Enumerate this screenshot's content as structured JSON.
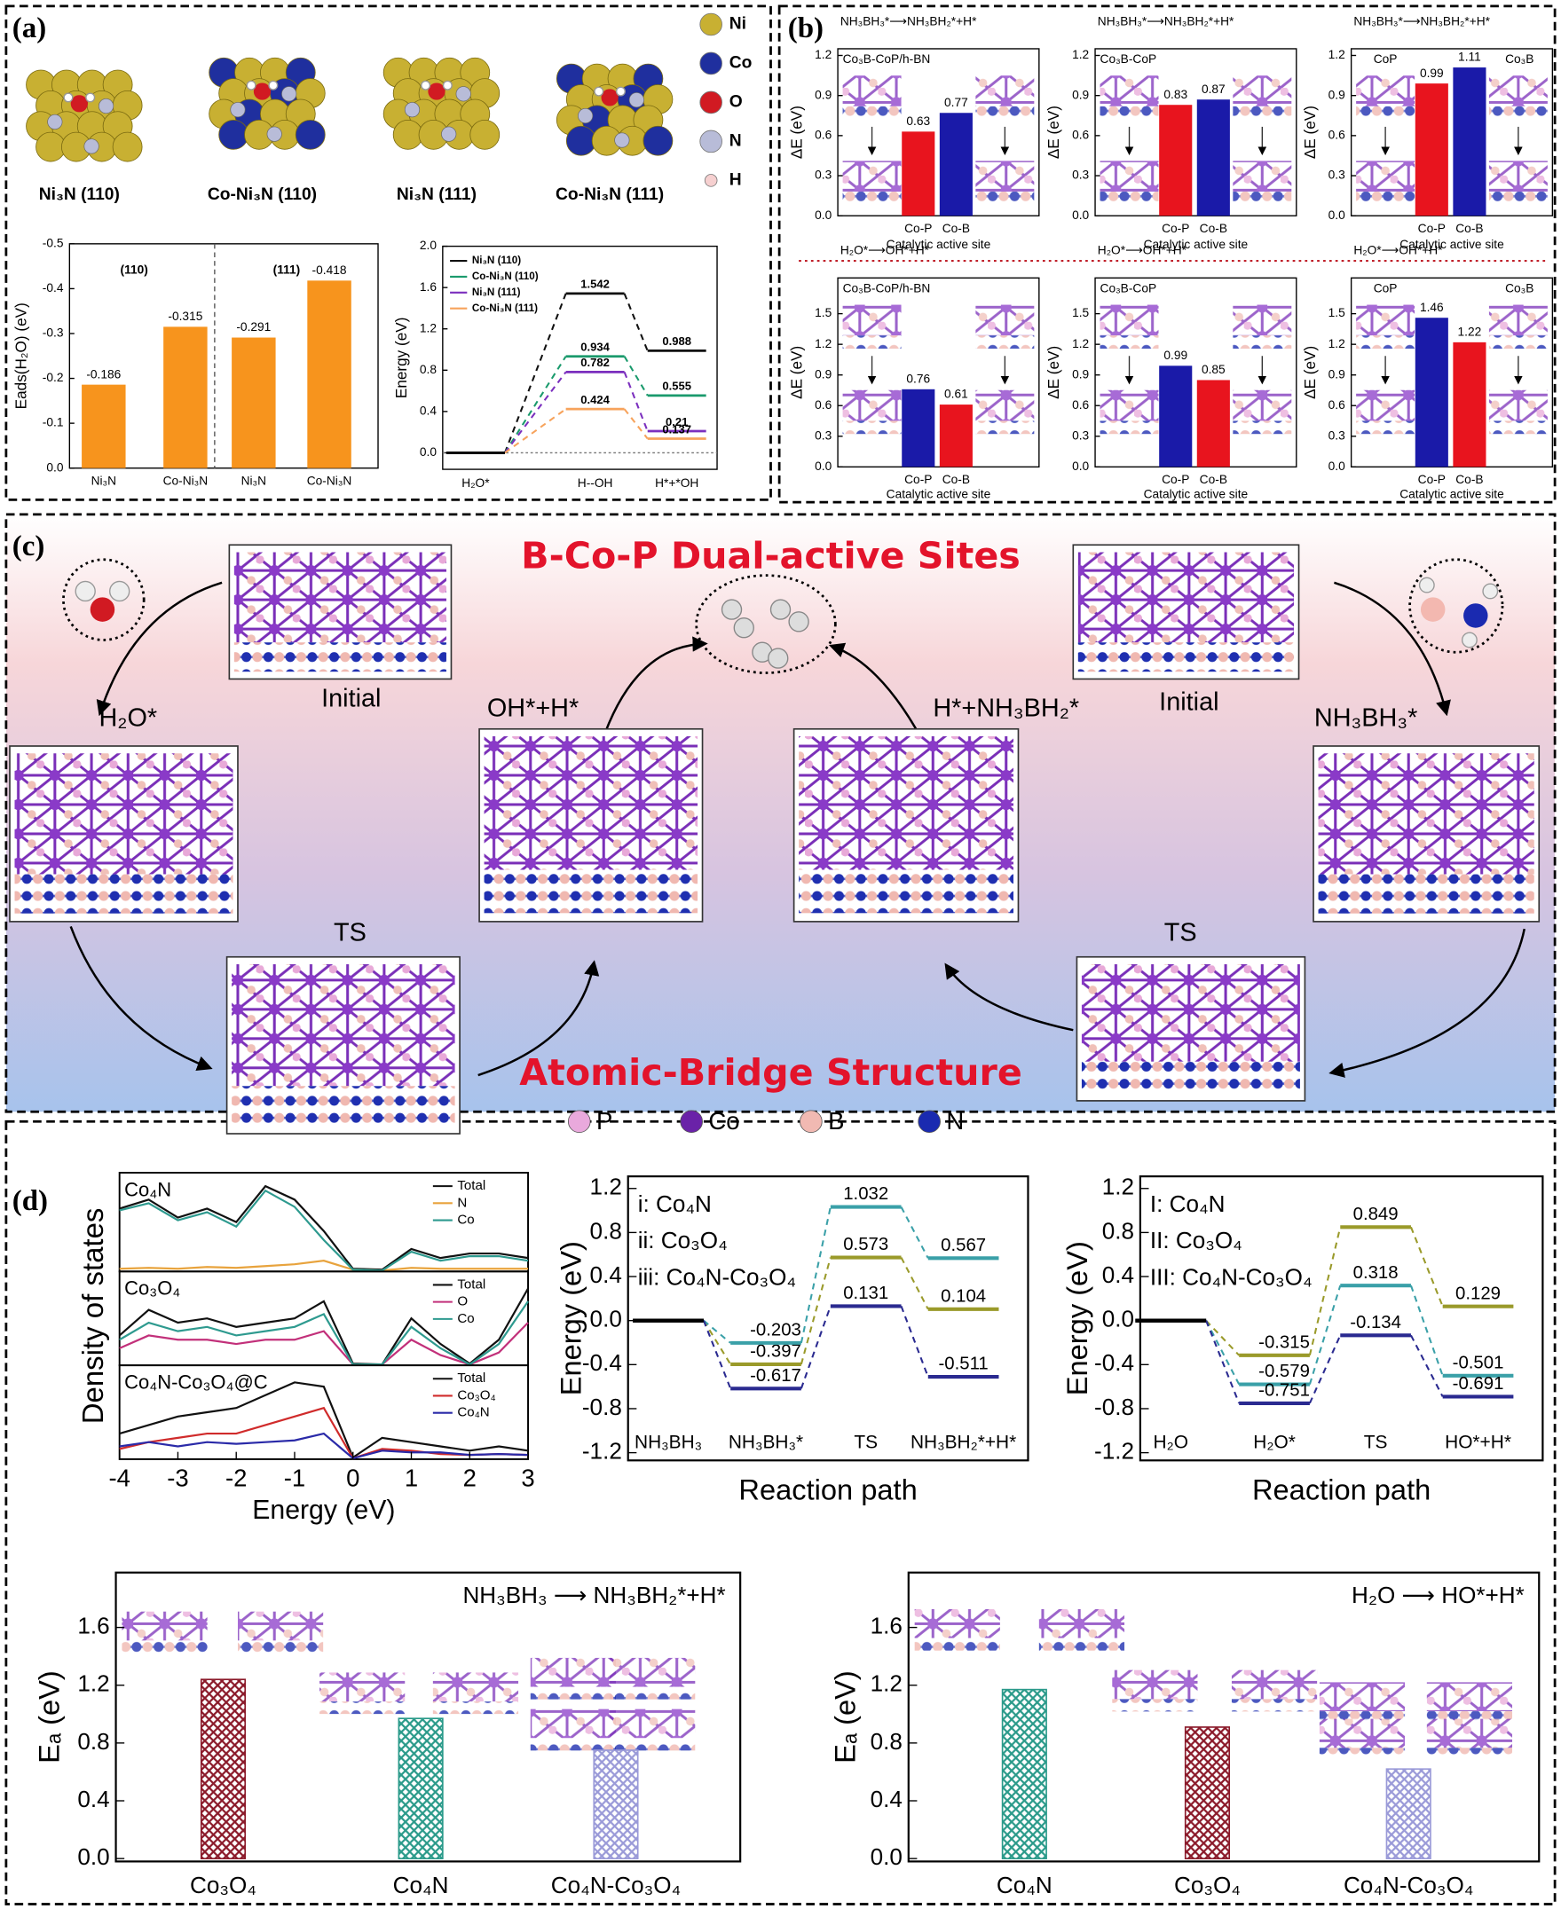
{
  "figure": {
    "panel_labels": [
      "(a)",
      "(b)",
      "(c)",
      "(d)"
    ],
    "structures": [
      "Ni₃N (110)",
      "Co-Ni₃N (110)",
      "Ni₃N (111)",
      "Co-Ni₃N (111)"
    ],
    "atoms_a": [
      "Ni",
      "Co",
      "O",
      "N",
      "H"
    ],
    "scheme": {
      "title": "B-Co-P Dual-active Sites",
      "subtitle": "Atomic-Bridge Structure",
      "states": [
        "Initial",
        "Initial",
        "H₂O*",
        "OH*+H*",
        "H*+NH₃BH₂*",
        "NH₃BH₃*",
        "TS",
        "TS"
      ],
      "atoms": [
        "P",
        "Co",
        "B",
        "N"
      ]
    }
  },
  "chart_data": [
    {
      "type": "bar",
      "ylabel": "Eads(H₂O) (eV)",
      "categories": [
        "Ni₃N",
        "Co-Ni₃N",
        "Ni₃N",
        "Co-Ni₃N"
      ],
      "groups": [
        "(110)",
        "(111)"
      ],
      "values": [
        -0.186,
        -0.315,
        -0.291,
        -0.418
      ],
      "color": "#f7941d",
      "data_labels": true,
      "ylim": [
        0,
        -0.5
      ],
      "yticks": [
        {
          "value": 0,
          "label": "0.0"
        },
        -0.1,
        -0.2,
        -0.3,
        -0.4,
        -0.5
      ]
    },
    {
      "type": "energy",
      "ylabel": "Energy (eV)",
      "categories": [
        "H₂O*",
        "H--OH",
        "H*+*OH"
      ],
      "zero_line": true,
      "series": [
        {
          "name": "Ni₃N (110)",
          "color": "#111111",
          "values": [
            0,
            1.542,
            0.988
          ]
        },
        {
          "name": "Co-Ni₃N (110)",
          "color": "#1a9a6c",
          "values": [
            0,
            0.934,
            0.555
          ]
        },
        {
          "name": "Ni₃N (111)",
          "color": "#7b2fbe",
          "values": [
            0,
            0.782,
            0.21
          ]
        },
        {
          "name": "Co-Ni₃N (111)",
          "color": "#f7a35c",
          "values": [
            0,
            0.424,
            0.137
          ]
        }
      ],
      "ylim": [
        -0.16,
        2.0
      ],
      "yticks": [
        {
          "value": 0,
          "label": "0.0"
        },
        0.4,
        0.8,
        1.2,
        1.6,
        {
          "value": 2,
          "label": "2.0"
        }
      ]
    },
    {
      "type": "bar",
      "title": "NH₃BH₃*⟶NH₃BH₂*+H*",
      "subtitle": "Co₃B-CoP/h-BN",
      "xlabel": "Catalytic active site",
      "ylabel": "ΔE (eV)",
      "categories": [
        "Co-P",
        "Co-B"
      ],
      "values": [
        0.63,
        0.77
      ],
      "colors": [
        "#e8141e",
        "#1a1aa8"
      ],
      "data_labels": true,
      "ylim": [
        0,
        1.25
      ],
      "yticks": [
        {
          "value": 0,
          "label": "0.0"
        },
        0.3,
        0.6,
        0.9,
        1.2
      ]
    },
    {
      "type": "bar",
      "title": "NH₃BH₃*⟶NH₃BH₂*+H*",
      "subtitle": "Co₃B-CoP",
      "xlabel": "Catalytic active site",
      "ylabel": "ΔE (eV)",
      "categories": [
        "Co-P",
        "Co-B"
      ],
      "values": [
        0.83,
        0.87
      ],
      "colors": [
        "#e8141e",
        "#1a1aa8"
      ],
      "data_labels": true,
      "ylim": [
        0,
        1.25
      ],
      "yticks": [
        {
          "value": 0,
          "label": "0.0"
        },
        0.3,
        0.6,
        0.9,
        1.2
      ]
    },
    {
      "type": "bar",
      "title": "NH₃BH₃*⟶NH₃BH₂*+H*",
      "annotations": [
        {
          "text": "CoP",
          "color": "#e8141e"
        },
        {
          "text": "Co₃B",
          "color": "#1a1aa8"
        }
      ],
      "xlabel": "Catalytic active site",
      "ylabel": "ΔE (eV)",
      "categories": [
        "Co-P",
        "Co-B"
      ],
      "values": [
        0.99,
        1.11
      ],
      "colors": [
        "#e8141e",
        "#1a1aa8"
      ],
      "data_labels": true,
      "ylim": [
        0,
        1.25
      ],
      "yticks": [
        {
          "value": 0,
          "label": "0.0"
        },
        0.3,
        0.6,
        0.9,
        1.2
      ]
    },
    {
      "type": "bar",
      "title": "H₂O*⟶OH*+H*",
      "subtitle": "Co₃B-CoP/h-BN",
      "xlabel": "Catalytic active site",
      "ylabel": "ΔE (eV)",
      "categories": [
        "Co-P",
        "Co-B"
      ],
      "values": [
        0.76,
        0.61
      ],
      "colors": [
        "#1a1aa8",
        "#e8141e"
      ],
      "data_labels": true,
      "ylim": [
        0,
        1.85
      ],
      "yticks": [
        {
          "value": 0,
          "label": "0.0"
        },
        0.3,
        0.6,
        0.9,
        1.2,
        1.5
      ]
    },
    {
      "type": "bar",
      "title": "H₂O*⟶OH*+H*",
      "subtitle": "Co₃B-CoP",
      "xlabel": "Catalytic active site",
      "ylabel": "ΔE (eV)",
      "categories": [
        "Co-P",
        "Co-B"
      ],
      "values": [
        0.99,
        0.85
      ],
      "colors": [
        "#1a1aa8",
        "#e8141e"
      ],
      "data_labels": true,
      "ylim": [
        0,
        1.85
      ],
      "yticks": [
        {
          "value": 0,
          "label": "0.0"
        },
        0.3,
        0.6,
        0.9,
        1.2,
        1.5
      ]
    },
    {
      "type": "bar",
      "title": "H₂O*⟶OH*+H*",
      "annotations": [
        {
          "text": "CoP",
          "color": "#1a1aa8"
        },
        {
          "text": "Co₃B",
          "color": "#e8141e"
        }
      ],
      "xlabel": "Catalytic active site",
      "ylabel": "ΔE (eV)",
      "categories": [
        "Co-P",
        "Co-B"
      ],
      "values": [
        1.46,
        1.22
      ],
      "colors": [
        "#1a1aa8",
        "#e8141e"
      ],
      "data_labels": true,
      "ylim": [
        0,
        1.85
      ],
      "yticks": [
        {
          "value": 0,
          "label": "0.0"
        },
        0.3,
        0.6,
        0.9,
        1.2,
        1.5
      ]
    },
    {
      "type": "line",
      "ylabel": "Density of states",
      "xlabel": "Energy (eV)",
      "x": [
        -4,
        -3.5,
        -3,
        -2.5,
        -2,
        -1.5,
        -1,
        -0.5,
        0,
        0.5,
        1,
        1.5,
        2,
        2.5,
        3
      ],
      "xlim": [
        -4,
        3
      ],
      "xticks": [
        -4,
        -3,
        -2,
        -1,
        0,
        1,
        2,
        3
      ],
      "ylim": [
        0,
        1.1
      ],
      "panels": [
        {
          "title": "Co₄N",
          "series": [
            {
              "name": "Total",
              "color": "#111111",
              "values": [
                0.7,
                0.8,
                0.6,
                0.7,
                0.55,
                0.95,
                0.8,
                0.45,
                0.03,
                0.02,
                0.25,
                0.15,
                0.2,
                0.2,
                0.15
              ]
            },
            {
              "name": "N",
              "color": "#e8a33d",
              "values": [
                0.03,
                0.04,
                0.03,
                0.05,
                0.04,
                0.06,
                0.08,
                0.12,
                0.02,
                0.01,
                0.04,
                0.03,
                0.03,
                0.03,
                0.03
              ]
            },
            {
              "name": "Co",
              "color": "#2e9a8f",
              "values": [
                0.68,
                0.76,
                0.57,
                0.66,
                0.5,
                0.9,
                0.72,
                0.35,
                0.02,
                0.01,
                0.22,
                0.12,
                0.17,
                0.17,
                0.12
              ]
            }
          ]
        },
        {
          "title": "Co₃O₄",
          "series": [
            {
              "name": "Total",
              "color": "#111111",
              "values": [
                0.35,
                0.65,
                0.5,
                0.55,
                0.45,
                0.5,
                0.55,
                0.75,
                0.02,
                0.01,
                0.55,
                0.25,
                0.02,
                0.3,
                0.9
              ]
            },
            {
              "name": "O",
              "color": "#c2307a",
              "values": [
                0.2,
                0.35,
                0.3,
                0.3,
                0.25,
                0.3,
                0.3,
                0.4,
                0.01,
                0.01,
                0.3,
                0.12,
                0.01,
                0.15,
                0.5
              ]
            },
            {
              "name": "Co",
              "color": "#2e9a8f",
              "values": [
                0.3,
                0.5,
                0.4,
                0.45,
                0.35,
                0.4,
                0.45,
                0.6,
                0.01,
                0.01,
                0.45,
                0.2,
                0.01,
                0.25,
                0.75
              ]
            }
          ]
        },
        {
          "title": "Co₄N-Co₃O₄@C",
          "series": [
            {
              "name": "Total",
              "color": "#111111",
              "values": [
                0.3,
                0.4,
                0.5,
                0.55,
                0.6,
                0.75,
                0.9,
                0.85,
                0.02,
                0.25,
                0.2,
                0.15,
                0.1,
                0.15,
                0.1
              ]
            },
            {
              "name": "Co₃O₄",
              "color": "#d02b2b",
              "values": [
                0.12,
                0.2,
                0.25,
                0.3,
                0.3,
                0.4,
                0.5,
                0.6,
                0.01,
                0.12,
                0.1,
                0.06,
                0.05,
                0.06,
                0.05
              ]
            },
            {
              "name": "Co₄N",
              "color": "#2a2aa8",
              "values": [
                0.15,
                0.2,
                0.15,
                0.2,
                0.18,
                0.2,
                0.22,
                0.3,
                0.01,
                0.1,
                0.08,
                0.08,
                0.05,
                0.06,
                0.05
              ]
            }
          ]
        }
      ]
    },
    {
      "type": "energy",
      "ylabel": "Energy (eV)",
      "xlabel": "Reaction path",
      "categories": [
        "NH₃BH₃",
        "NH₃BH₃*",
        "TS",
        "NH₃BH₂*+H*"
      ],
      "series": [
        {
          "name": "i: Co₄N",
          "color": "#9a9a2a",
          "values": [
            0,
            -0.397,
            0.573,
            0.104
          ]
        },
        {
          "name": "ii: Co₃O₄",
          "color": "#3aa0a8",
          "values": [
            0,
            -0.203,
            1.032,
            0.567
          ]
        },
        {
          "name": "iii: Co₄N-Co₃O₄",
          "color": "#2a2a90",
          "values": [
            0,
            -0.617,
            0.131,
            -0.511
          ]
        }
      ],
      "ylim": [
        -1.27,
        1.31
      ],
      "yticks": [
        -1.2,
        -0.8,
        -0.4,
        {
          "value": 0,
          "label": "0.0"
        },
        0.4,
        0.8,
        1.2
      ]
    },
    {
      "type": "energy",
      "ylabel": "Energy (eV)",
      "xlabel": "Reaction path",
      "categories": [
        "H₂O",
        "H₂O*",
        "TS",
        "HO*+H*"
      ],
      "series": [
        {
          "name": "I: Co₄N",
          "color": "#9a9a2a",
          "values": [
            0,
            -0.315,
            0.849,
            0.129
          ]
        },
        {
          "name": "II: Co₃O₄",
          "color": "#3aa0a8",
          "values": [
            0,
            -0.579,
            0.318,
            -0.501
          ]
        },
        {
          "name": "III: Co₄N-Co₃O₄",
          "color": "#2a2a90",
          "values": [
            0,
            -0.751,
            -0.134,
            -0.691
          ]
        }
      ],
      "ylim": [
        -1.27,
        1.31
      ],
      "yticks": [
        -1.2,
        -0.8,
        -0.4,
        {
          "value": 0,
          "label": "0.0"
        },
        0.4,
        0.8,
        1.2
      ]
    },
    {
      "type": "bar",
      "ylabel": "Eₐ (eV)",
      "annotation": "NH₃BH₃ ⟶ NH₃BH₂*+H*",
      "categories": [
        "Co₃O₄",
        "Co₄N",
        "Co₄N-Co₃O₄"
      ],
      "values": [
        1.24,
        0.97,
        0.75
      ],
      "colors": [
        "#8b1a2a",
        "#2a9a8a",
        "#9a9ad8"
      ],
      "hatch": true,
      "ylim": [
        -0.02,
        1.98
      ],
      "yticks": [
        {
          "value": 0,
          "label": "0.0"
        },
        0.4,
        0.8,
        1.2,
        1.6
      ]
    },
    {
      "type": "bar",
      "ylabel": "Eₐ (eV)",
      "annotation": "H₂O ⟶ HO*+H*",
      "categories": [
        "Co₄N",
        "Co₃O₄",
        "Co₄N-Co₃O₄"
      ],
      "values": [
        1.17,
        0.91,
        0.62
      ],
      "colors": [
        "#2a9a8a",
        "#8b1a2a",
        "#9a9ad8"
      ],
      "hatch": true,
      "ylim": [
        -0.02,
        1.98
      ],
      "yticks": [
        {
          "value": 0,
          "label": "0.0"
        },
        0.4,
        0.8,
        1.2,
        1.6
      ]
    }
  ]
}
